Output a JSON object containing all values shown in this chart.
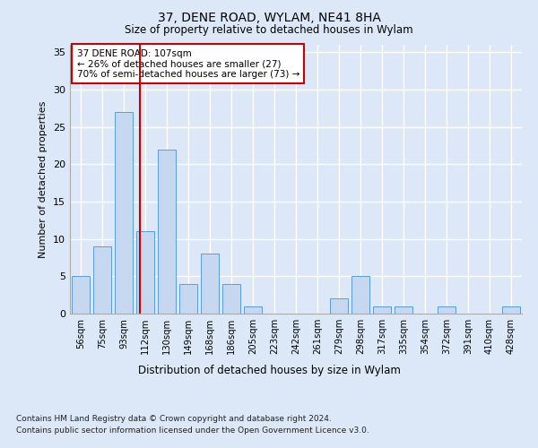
{
  "title1": "37, DENE ROAD, WYLAM, NE41 8HA",
  "title2": "Size of property relative to detached houses in Wylam",
  "xlabel": "Distribution of detached houses by size in Wylam",
  "ylabel": "Number of detached properties",
  "categories": [
    "56sqm",
    "75sqm",
    "93sqm",
    "112sqm",
    "130sqm",
    "149sqm",
    "168sqm",
    "186sqm",
    "205sqm",
    "223sqm",
    "242sqm",
    "261sqm",
    "279sqm",
    "298sqm",
    "317sqm",
    "335sqm",
    "354sqm",
    "372sqm",
    "391sqm",
    "410sqm",
    "428sqm"
  ],
  "values": [
    5,
    9,
    27,
    11,
    22,
    4,
    8,
    4,
    1,
    0,
    0,
    0,
    2,
    5,
    1,
    1,
    0,
    1,
    0,
    0,
    1
  ],
  "bar_color": "#c5d8f0",
  "bar_edgecolor": "#5b9bd5",
  "vline_x": 2.74,
  "vline_color": "#cc0000",
  "annotation_text": "37 DENE ROAD: 107sqm\n← 26% of detached houses are smaller (27)\n70% of semi-detached houses are larger (73) →",
  "annotation_box_color": "#ffffff",
  "annotation_box_edgecolor": "#cc0000",
  "ylim": [
    0,
    36
  ],
  "yticks": [
    0,
    5,
    10,
    15,
    20,
    25,
    30,
    35
  ],
  "footer1": "Contains HM Land Registry data © Crown copyright and database right 2024.",
  "footer2": "Contains public sector information licensed under the Open Government Licence v3.0.",
  "bg_color": "#dce8f8",
  "plot_bg_color": "#dce8f8",
  "grid_color": "#ffffff"
}
